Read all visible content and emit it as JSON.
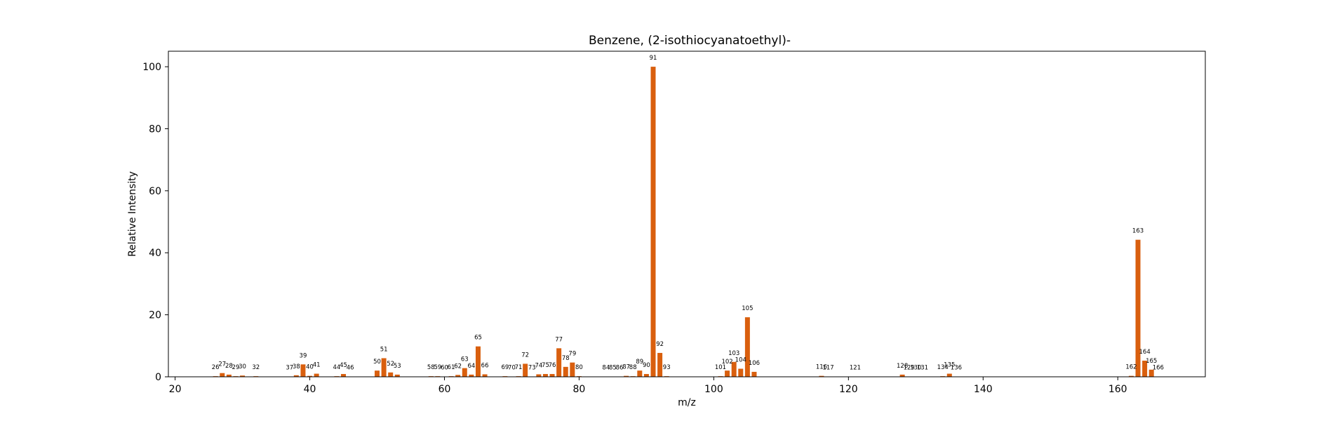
{
  "chart_data": {
    "type": "bar",
    "title": "Benzene, (2-isothiocyanatoethyl)-",
    "xlabel": "m/z",
    "ylabel": "Relative Intensity",
    "xlim": [
      19,
      173
    ],
    "ylim": [
      0,
      105
    ],
    "xticks": [
      20,
      40,
      60,
      80,
      100,
      120,
      140,
      160
    ],
    "yticks": [
      0,
      20,
      40,
      60,
      80,
      100
    ],
    "grid": false,
    "bar_color": "#d95f0e",
    "peaks": [
      {
        "mz": 26,
        "intensity": 0.2
      },
      {
        "mz": 27,
        "intensity": 1.2
      },
      {
        "mz": 28,
        "intensity": 0.7
      },
      {
        "mz": 29,
        "intensity": 0.2
      },
      {
        "mz": 30,
        "intensity": 0.4
      },
      {
        "mz": 32,
        "intensity": 0.2
      },
      {
        "mz": 37,
        "intensity": 0.1
      },
      {
        "mz": 38,
        "intensity": 0.5
      },
      {
        "mz": 39,
        "intensity": 4.0
      },
      {
        "mz": 40,
        "intensity": 0.3
      },
      {
        "mz": 41,
        "intensity": 1.0
      },
      {
        "mz": 44,
        "intensity": 0.2
      },
      {
        "mz": 45,
        "intensity": 0.9
      },
      {
        "mz": 46,
        "intensity": 0.1
      },
      {
        "mz": 50,
        "intensity": 2.0
      },
      {
        "mz": 51,
        "intensity": 6.0
      },
      {
        "mz": 52,
        "intensity": 1.4
      },
      {
        "mz": 53,
        "intensity": 0.7
      },
      {
        "mz": 58,
        "intensity": 0.2
      },
      {
        "mz": 59,
        "intensity": 0.2
      },
      {
        "mz": 60,
        "intensity": 0.1
      },
      {
        "mz": 61,
        "intensity": 0.2
      },
      {
        "mz": 62,
        "intensity": 0.6
      },
      {
        "mz": 63,
        "intensity": 2.8
      },
      {
        "mz": 64,
        "intensity": 0.7
      },
      {
        "mz": 65,
        "intensity": 9.8
      },
      {
        "mz": 66,
        "intensity": 0.8
      },
      {
        "mz": 69,
        "intensity": 0.2
      },
      {
        "mz": 70,
        "intensity": 0.1
      },
      {
        "mz": 71,
        "intensity": 0.2
      },
      {
        "mz": 72,
        "intensity": 4.2
      },
      {
        "mz": 73,
        "intensity": 0.1
      },
      {
        "mz": 74,
        "intensity": 0.8
      },
      {
        "mz": 75,
        "intensity": 0.9
      },
      {
        "mz": 76,
        "intensity": 0.9
      },
      {
        "mz": 77,
        "intensity": 9.2
      },
      {
        "mz": 78,
        "intensity": 3.2
      },
      {
        "mz": 79,
        "intensity": 4.6
      },
      {
        "mz": 80,
        "intensity": 0.2
      },
      {
        "mz": 84,
        "intensity": 0.1
      },
      {
        "mz": 85,
        "intensity": 0.1
      },
      {
        "mz": 86,
        "intensity": 0.1
      },
      {
        "mz": 87,
        "intensity": 0.3
      },
      {
        "mz": 88,
        "intensity": 0.2
      },
      {
        "mz": 89,
        "intensity": 2.0
      },
      {
        "mz": 90,
        "intensity": 0.9
      },
      {
        "mz": 91,
        "intensity": 100.0
      },
      {
        "mz": 92,
        "intensity": 7.7
      },
      {
        "mz": 93,
        "intensity": 0.2
      },
      {
        "mz": 101,
        "intensity": 0.2
      },
      {
        "mz": 102,
        "intensity": 2.0
      },
      {
        "mz": 103,
        "intensity": 4.8
      },
      {
        "mz": 104,
        "intensity": 2.6
      },
      {
        "mz": 105,
        "intensity": 19.2
      },
      {
        "mz": 106,
        "intensity": 1.6
      },
      {
        "mz": 116,
        "intensity": 0.3
      },
      {
        "mz": 117,
        "intensity": 0.1
      },
      {
        "mz": 121,
        "intensity": 0.1
      },
      {
        "mz": 128,
        "intensity": 0.7
      },
      {
        "mz": 129,
        "intensity": 0.1
      },
      {
        "mz": 130,
        "intensity": 0.1
      },
      {
        "mz": 131,
        "intensity": 0.1
      },
      {
        "mz": 134,
        "intensity": 0.2
      },
      {
        "mz": 135,
        "intensity": 1.0
      },
      {
        "mz": 136,
        "intensity": 0.1
      },
      {
        "mz": 162,
        "intensity": 0.3
      },
      {
        "mz": 163,
        "intensity": 44.2
      },
      {
        "mz": 164,
        "intensity": 5.2
      },
      {
        "mz": 165,
        "intensity": 2.3
      },
      {
        "mz": 166,
        "intensity": 0.1
      }
    ]
  }
}
